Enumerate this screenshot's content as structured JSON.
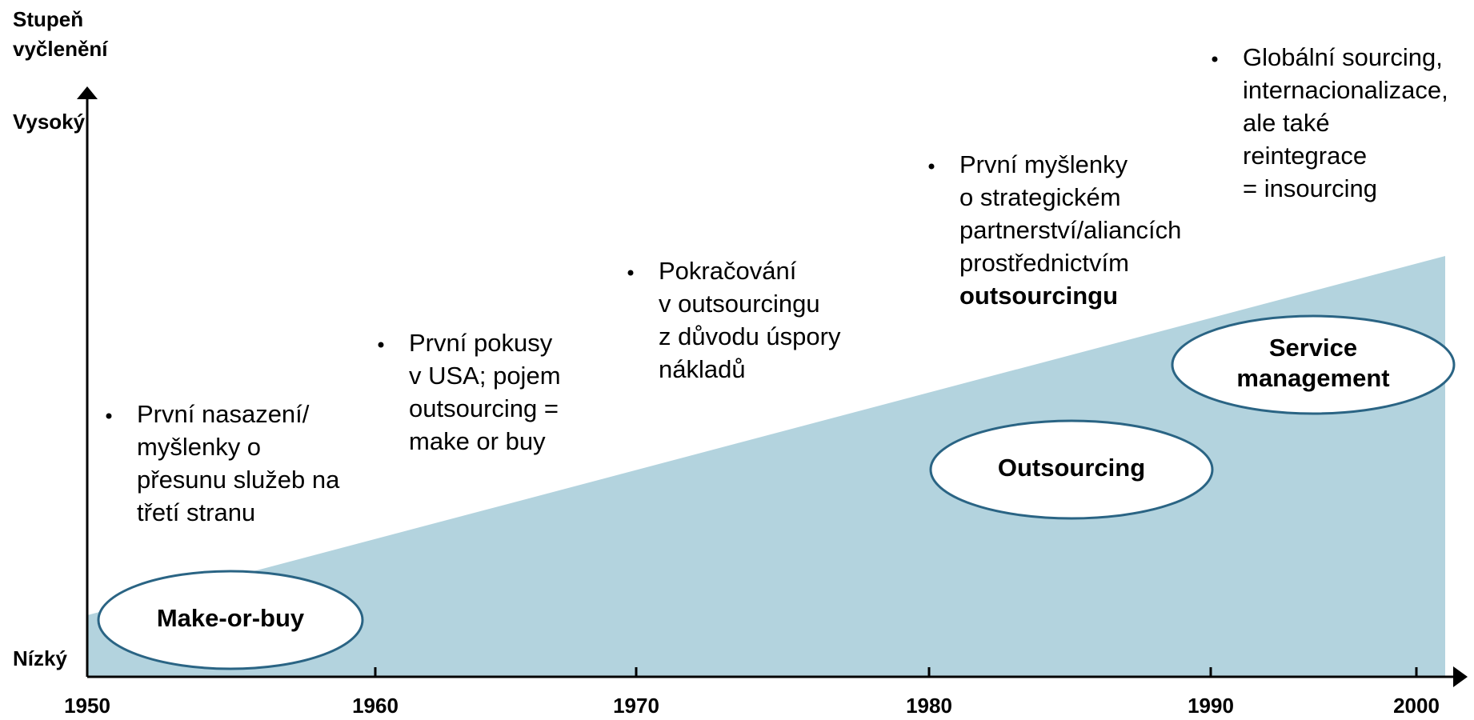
{
  "axis": {
    "y_title": [
      "Stupeň",
      "vyčlenění"
    ],
    "y_high": "Vysoký",
    "y_low": "Nízký",
    "x_ticks": [
      "1950",
      "1960",
      "1970",
      "1980",
      "1990",
      "2000"
    ]
  },
  "phases": [
    {
      "label": [
        "Make-or-buy"
      ]
    },
    {
      "label": [
        "Outsourcing"
      ]
    },
    {
      "label": [
        "Service",
        "management"
      ]
    }
  ],
  "notes": [
    {
      "lines": [
        "První nasazení/",
        "myšlenky o",
        "přesunu služeb na",
        "třetí stranu"
      ]
    },
    {
      "lines": [
        "První pokusy",
        "v USA; pojem",
        "outsourcing =",
        "make or buy"
      ]
    },
    {
      "lines": [
        "Pokračování",
        "v outsourcingu",
        "z důvodu úspory",
        "nákladů"
      ]
    },
    {
      "lines": [
        "První myšlenky",
        "o strategickém",
        "partnerství/aliancích",
        "prostřednictvím",
        "outsourcingu"
      ]
    },
    {
      "lines": [
        "Globální sourcing,",
        "internacionalizace,",
        "ale také",
        "reintegrace",
        "= insourcing"
      ]
    }
  ]
}
